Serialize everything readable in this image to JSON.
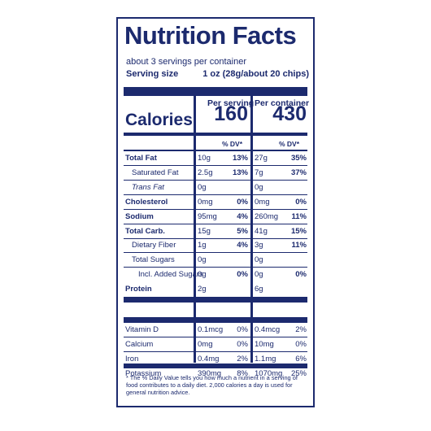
{
  "title": "Nutrition Facts",
  "servings_per_container": "about 3 servings per container",
  "serving_size_label": "Serving size",
  "serving_size_value": "1 oz (28g/about 20 chips)",
  "col_per_serving": "Per serving",
  "col_per_container": "Per container",
  "calories_label": "Calories",
  "calories_per_serving": "160",
  "calories_per_container": "430",
  "dv_header": "% DV*",
  "nutrients": [
    {
      "name": "Total Fat",
      "bold": true,
      "indent": 0,
      "s_amt": "10g",
      "s_dv": "13%",
      "c_amt": "27g",
      "c_dv": "35%"
    },
    {
      "name": "Saturated Fat",
      "bold": false,
      "indent": 1,
      "s_amt": "2.5g",
      "s_dv": "13%",
      "c_amt": "7g",
      "c_dv": "37%"
    },
    {
      "name": "Trans Fat",
      "bold": false,
      "indent": 1,
      "italic": true,
      "s_amt": "0g",
      "s_dv": "",
      "c_amt": "0g",
      "c_dv": ""
    },
    {
      "name": "Cholesterol",
      "bold": true,
      "indent": 0,
      "s_amt": "0mg",
      "s_dv": "0%",
      "c_amt": "0mg",
      "c_dv": "0%"
    },
    {
      "name": "Sodium",
      "bold": true,
      "indent": 0,
      "s_amt": "95mg",
      "s_dv": "4%",
      "c_amt": "260mg",
      "c_dv": "11%"
    },
    {
      "name": "Total Carb.",
      "bold": true,
      "indent": 0,
      "s_amt": "15g",
      "s_dv": "5%",
      "c_amt": "41g",
      "c_dv": "15%"
    },
    {
      "name": "Dietary Fiber",
      "bold": false,
      "indent": 1,
      "s_amt": "1g",
      "s_dv": "4%",
      "c_amt": "3g",
      "c_dv": "11%"
    },
    {
      "name": "Total Sugars",
      "bold": false,
      "indent": 1,
      "s_amt": "0g",
      "s_dv": "",
      "c_amt": "0g",
      "c_dv": ""
    },
    {
      "name": "Incl. Added Sugars",
      "bold": false,
      "indent": 2,
      "s_amt": "0g",
      "s_dv": "0%",
      "c_amt": "0g",
      "c_dv": "0%"
    },
    {
      "name": "Protein",
      "bold": true,
      "indent": 0,
      "s_amt": "2g",
      "s_dv": "",
      "c_amt": "6g",
      "c_dv": ""
    }
  ],
  "vitamins": [
    {
      "name": "Vitamin D",
      "s_amt": "0.1mcg",
      "s_dv": "0%",
      "c_amt": "0.4mcg",
      "c_dv": "2%"
    },
    {
      "name": "Calcium",
      "s_amt": "0mg",
      "s_dv": "0%",
      "c_amt": "10mg",
      "c_dv": "0%"
    },
    {
      "name": "Iron",
      "s_amt": "0.4mg",
      "s_dv": "2%",
      "c_amt": "1.1mg",
      "c_dv": "6%"
    },
    {
      "name": "Potassium",
      "s_amt": "390mg",
      "s_dv": "8%",
      "c_amt": "1070mg",
      "c_dv": "25%"
    }
  ],
  "footnote": "* The % Daily Value tells you how much a nutrient in a serving of food contributes to a daily diet. 2,000 calories a day is used for general nutrition advice.",
  "colors": {
    "ink": "#1c2a6e",
    "background": "#ffffff"
  }
}
